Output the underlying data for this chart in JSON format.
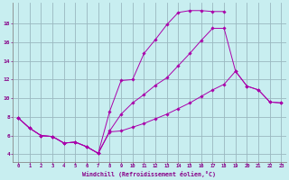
{
  "xlabel": "Windchill (Refroidissement éolien,°C)",
  "background_color": "#c8eef0",
  "grid_color": "#9ab8c0",
  "line_color": "#aa00aa",
  "xlim_min": -0.5,
  "xlim_max": 23.4,
  "ylim_min": 3.2,
  "ylim_max": 20.2,
  "yticks": [
    4,
    6,
    8,
    10,
    12,
    14,
    16,
    18
  ],
  "xticks": [
    0,
    1,
    2,
    3,
    4,
    5,
    6,
    7,
    8,
    9,
    10,
    11,
    12,
    13,
    14,
    15,
    16,
    17,
    18,
    19,
    20,
    21,
    22,
    23
  ],
  "line1_x": [
    0,
    1,
    2,
    3,
    4,
    5,
    6,
    7,
    8,
    9,
    10,
    11,
    12,
    13,
    14,
    15,
    16,
    17,
    18
  ],
  "line1_y": [
    7.9,
    6.8,
    6.0,
    5.9,
    5.2,
    5.3,
    4.8,
    4.1,
    8.6,
    11.9,
    12.0,
    14.8,
    16.3,
    17.9,
    19.2,
    19.4,
    19.4,
    19.3,
    19.3
  ],
  "line2_x": [
    0,
    1,
    2,
    3,
    4,
    5,
    6,
    7,
    8,
    9,
    10,
    11,
    12,
    13,
    14,
    15,
    16,
    17,
    18,
    19,
    20,
    21,
    22,
    23
  ],
  "line2_y": [
    7.9,
    6.8,
    6.0,
    5.9,
    5.2,
    5.3,
    4.8,
    4.1,
    6.5,
    8.3,
    9.5,
    10.4,
    11.4,
    12.2,
    13.5,
    14.8,
    16.2,
    17.5,
    17.5,
    12.9,
    11.3,
    10.9,
    9.6,
    9.5
  ],
  "line3_x": [
    0,
    1,
    2,
    3,
    4,
    5,
    6,
    7,
    8,
    9,
    10,
    11,
    12,
    13,
    14,
    15,
    16,
    17,
    18,
    19,
    20,
    21,
    22,
    23
  ],
  "line3_y": [
    7.9,
    6.8,
    6.0,
    5.9,
    5.2,
    5.3,
    4.8,
    4.1,
    6.4,
    6.5,
    6.9,
    7.3,
    7.8,
    8.3,
    8.9,
    9.5,
    10.2,
    10.9,
    11.5,
    12.9,
    11.3,
    10.9,
    9.6,
    9.5
  ]
}
